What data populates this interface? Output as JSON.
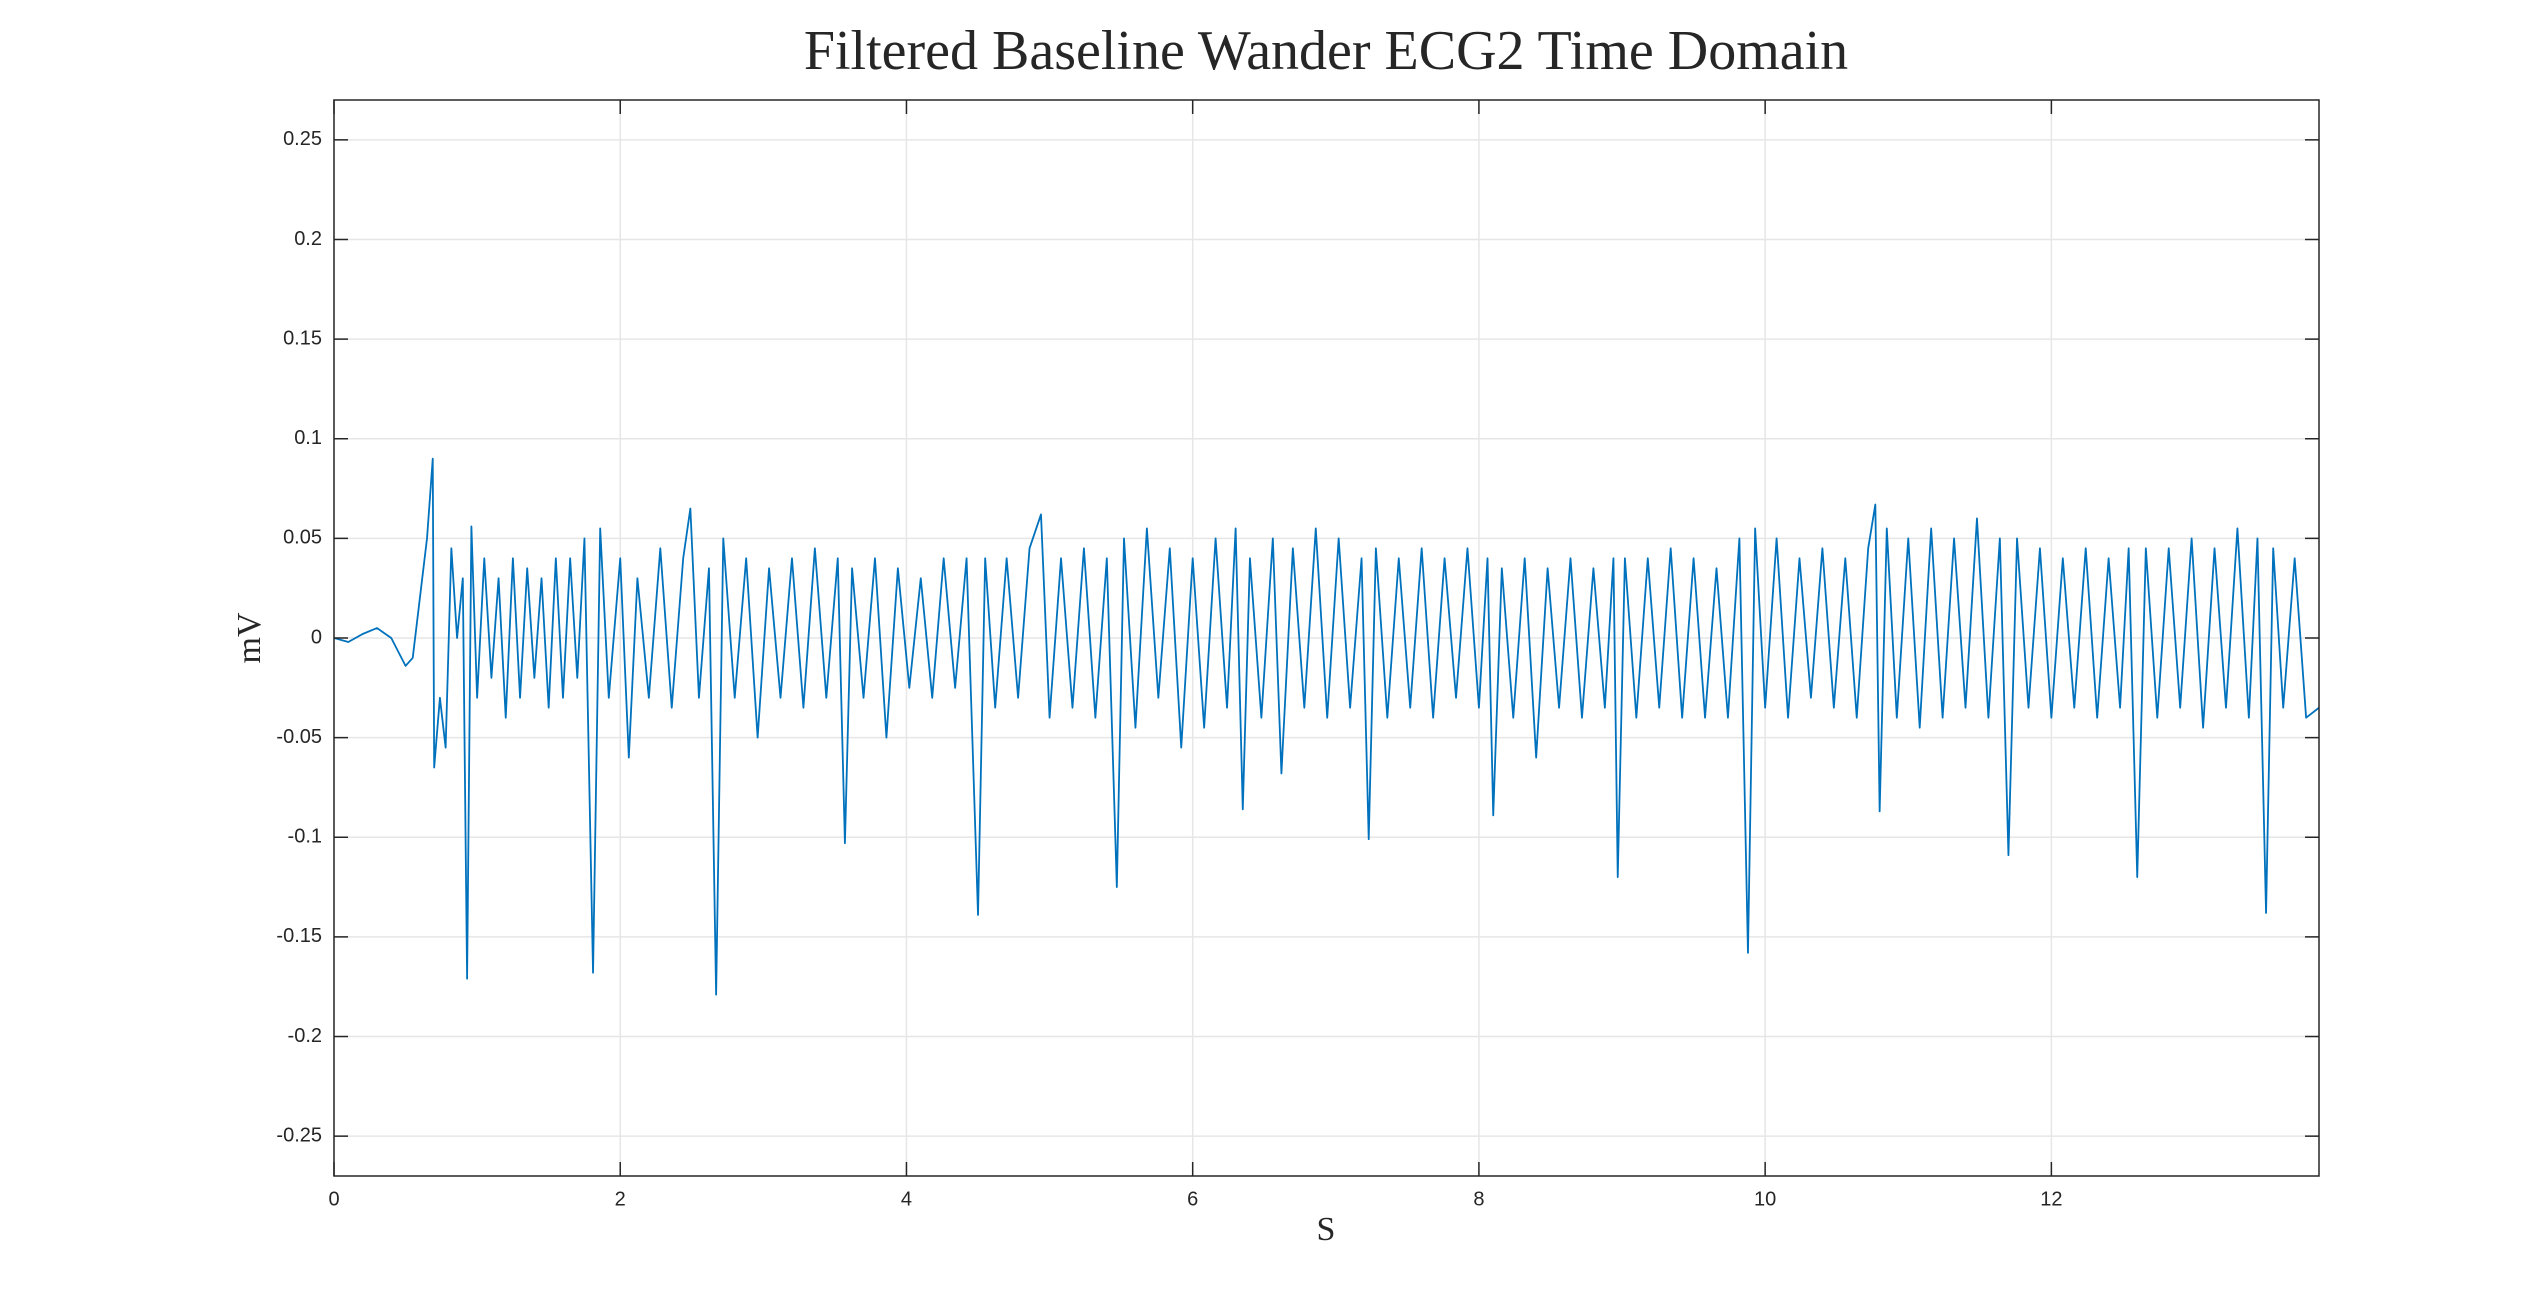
{
  "chart_data": {
    "type": "line",
    "title": "Filtered Baseline Wander ECG2 Time Domain",
    "xlabel": "S",
    "ylabel": "mV",
    "color": "#0072bd",
    "grid": true,
    "xlim": [
      0,
      13.87
    ],
    "ylim": [
      -0.27,
      0.27
    ],
    "xticks": [
      0,
      2,
      4,
      6,
      8,
      10,
      12
    ],
    "yticks": [
      -0.25,
      -0.2,
      -0.15,
      -0.1,
      -0.05,
      0,
      0.05,
      0.1,
      0.15,
      0.2,
      0.25
    ],
    "x": [
      0,
      0.1,
      0.2,
      0.3,
      0.4,
      0.5,
      0.55,
      0.6,
      0.65,
      0.69,
      0.7,
      0.74,
      0.78,
      0.82,
      0.86,
      0.9,
      0.93,
      0.96,
      1.0,
      1.05,
      1.1,
      1.15,
      1.2,
      1.25,
      1.3,
      1.35,
      1.4,
      1.45,
      1.5,
      1.55,
      1.6,
      1.65,
      1.7,
      1.75,
      1.81,
      1.86,
      1.92,
      2.0,
      2.06,
      2.12,
      2.2,
      2.28,
      2.36,
      2.44,
      2.49,
      2.55,
      2.62,
      2.67,
      2.72,
      2.8,
      2.88,
      2.96,
      3.04,
      3.12,
      3.2,
      3.28,
      3.36,
      3.44,
      3.52,
      3.57,
      3.62,
      3.7,
      3.78,
      3.86,
      3.94,
      4.02,
      4.1,
      4.18,
      4.26,
      4.34,
      4.42,
      4.5,
      4.55,
      4.62,
      4.7,
      4.78,
      4.86,
      4.94,
      5.0,
      5.08,
      5.16,
      5.24,
      5.32,
      5.4,
      5.47,
      5.52,
      5.6,
      5.68,
      5.76,
      5.84,
      5.92,
      6.0,
      6.08,
      6.16,
      6.24,
      6.3,
      6.35,
      6.4,
      6.48,
      6.56,
      6.62,
      6.7,
      6.78,
      6.86,
      6.94,
      7.02,
      7.1,
      7.18,
      7.23,
      7.28,
      7.36,
      7.44,
      7.52,
      7.6,
      7.68,
      7.76,
      7.84,
      7.92,
      8.0,
      8.06,
      8.1,
      8.16,
      8.24,
      8.32,
      8.4,
      8.48,
      8.56,
      8.64,
      8.72,
      8.8,
      8.88,
      8.94,
      8.97,
      9.02,
      9.1,
      9.18,
      9.26,
      9.34,
      9.42,
      9.5,
      9.58,
      9.66,
      9.74,
      9.82,
      9.88,
      9.93,
      10.0,
      10.08,
      10.16,
      10.24,
      10.32,
      10.4,
      10.48,
      10.56,
      10.64,
      10.72,
      10.77,
      10.8,
      10.85,
      10.92,
      11.0,
      11.08,
      11.16,
      11.24,
      11.32,
      11.4,
      11.48,
      11.56,
      11.64,
      11.7,
      11.76,
      11.84,
      11.92,
      12.0,
      12.08,
      12.16,
      12.24,
      12.32,
      12.4,
      12.48,
      12.54,
      12.6,
      12.66,
      12.74,
      12.82,
      12.9,
      12.98,
      13.06,
      13.14,
      13.22,
      13.3,
      13.38,
      13.44,
      13.5,
      13.55,
      13.62,
      13.7,
      13.78,
      13.87
    ],
    "values": [
      0,
      -0.002,
      0.002,
      0.005,
      0,
      -0.014,
      -0.01,
      0.02,
      0.05,
      0.09,
      -0.065,
      -0.03,
      -0.055,
      0.045,
      0,
      0.03,
      -0.171,
      0.056,
      -0.03,
      0.04,
      -0.02,
      0.03,
      -0.04,
      0.04,
      -0.03,
      0.035,
      -0.02,
      0.03,
      -0.035,
      0.04,
      -0.03,
      0.04,
      -0.02,
      0.05,
      -0.168,
      0.055,
      -0.03,
      0.04,
      -0.06,
      0.03,
      -0.03,
      0.045,
      -0.035,
      0.04,
      0.065,
      -0.03,
      0.035,
      -0.179,
      0.05,
      -0.03,
      0.04,
      -0.05,
      0.035,
      -0.03,
      0.04,
      -0.035,
      0.045,
      -0.03,
      0.04,
      -0.103,
      0.035,
      -0.03,
      0.04,
      -0.05,
      0.035,
      -0.025,
      0.03,
      -0.03,
      0.04,
      -0.025,
      0.04,
      -0.139,
      0.04,
      -0.035,
      0.04,
      -0.03,
      0.045,
      0.062,
      -0.04,
      0.04,
      -0.035,
      0.045,
      -0.04,
      0.04,
      -0.125,
      0.05,
      -0.045,
      0.055,
      -0.03,
      0.045,
      -0.055,
      0.04,
      -0.045,
      0.05,
      -0.035,
      0.055,
      -0.086,
      0.04,
      -0.04,
      0.05,
      -0.068,
      0.045,
      -0.035,
      0.055,
      -0.04,
      0.05,
      -0.035,
      0.04,
      -0.101,
      0.045,
      -0.04,
      0.04,
      -0.035,
      0.045,
      -0.04,
      0.04,
      -0.03,
      0.045,
      -0.035,
      0.04,
      -0.089,
      0.035,
      -0.04,
      0.04,
      -0.06,
      0.035,
      -0.035,
      0.04,
      -0.04,
      0.035,
      -0.035,
      0.04,
      -0.12,
      0.04,
      -0.04,
      0.04,
      -0.035,
      0.045,
      -0.04,
      0.04,
      -0.04,
      0.035,
      -0.04,
      0.05,
      -0.158,
      0.055,
      -0.035,
      0.05,
      -0.04,
      0.04,
      -0.03,
      0.045,
      -0.035,
      0.04,
      -0.04,
      0.045,
      0.067,
      -0.087,
      0.055,
      -0.04,
      0.05,
      -0.045,
      0.055,
      -0.04,
      0.05,
      -0.035,
      0.06,
      -0.04,
      0.05,
      -0.109,
      0.05,
      -0.035,
      0.045,
      -0.04,
      0.04,
      -0.035,
      0.045,
      -0.04,
      0.04,
      -0.035,
      0.045,
      -0.12,
      0.045,
      -0.04,
      0.045,
      -0.035,
      0.05,
      -0.045,
      0.045,
      -0.035,
      0.055,
      -0.04,
      0.05,
      -0.138,
      0.045,
      -0.035,
      0.04,
      -0.04,
      -0.035
    ]
  }
}
